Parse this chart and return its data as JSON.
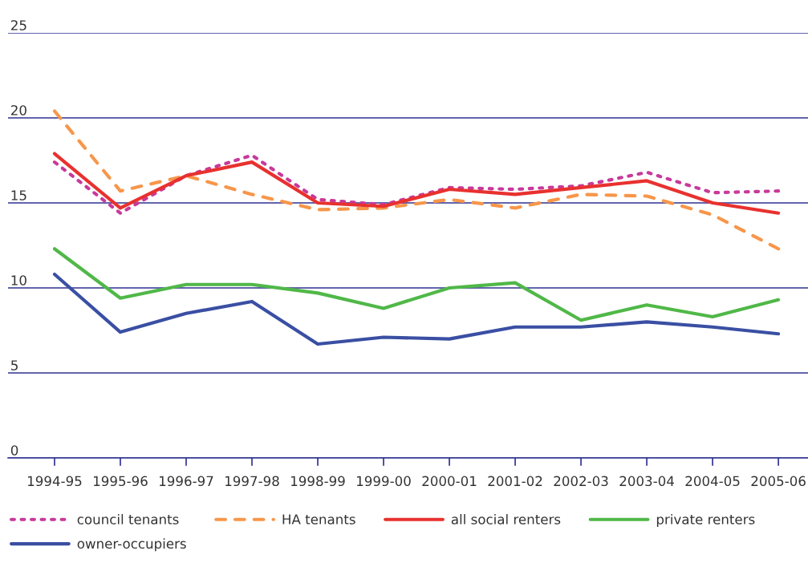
{
  "chart_data": {
    "type": "line",
    "categories": [
      "1994-95",
      "1995-96",
      "1996-97",
      "1997-98",
      "1998-99",
      "1999-00",
      "2000-01",
      "2001-02",
      "2002-03",
      "2003-04",
      "2004-05",
      "2005-06"
    ],
    "ylim": [
      0,
      25
    ],
    "yticks": [
      0,
      5,
      10,
      15,
      20,
      25
    ],
    "grid": "y",
    "legend": "bottom",
    "series": [
      {
        "name": "council tenants",
        "color": "#c8399a",
        "line_style": "dotted",
        "values": [
          17.4,
          14.4,
          16.6,
          17.8,
          15.2,
          14.9,
          15.9,
          15.8,
          16.0,
          16.8,
          15.6,
          15.7
        ]
      },
      {
        "name": "HA tenants",
        "color": "#f7964a",
        "line_style": "dashed",
        "values": [
          20.4,
          15.7,
          16.6,
          15.5,
          14.6,
          14.7,
          15.2,
          14.7,
          15.5,
          15.4,
          14.3,
          12.3
        ]
      },
      {
        "name": "all social renters",
        "color": "#e8312f",
        "line_style": "solid",
        "values": [
          17.9,
          14.7,
          16.6,
          17.4,
          15.0,
          14.8,
          15.8,
          15.5,
          15.9,
          16.3,
          15.0,
          14.4
        ]
      },
      {
        "name": "private renters",
        "color": "#50b848",
        "line_style": "solid",
        "values": [
          12.3,
          9.4,
          10.2,
          10.2,
          9.7,
          8.8,
          10.0,
          10.3,
          8.1,
          9.0,
          8.3,
          9.3
        ]
      },
      {
        "name": "owner-occupiers",
        "color": "#3a4fa3",
        "line_style": "solid",
        "values": [
          10.8,
          7.4,
          8.5,
          9.2,
          6.7,
          7.1,
          7.0,
          7.7,
          7.7,
          8.0,
          7.7,
          7.3
        ]
      }
    ]
  }
}
